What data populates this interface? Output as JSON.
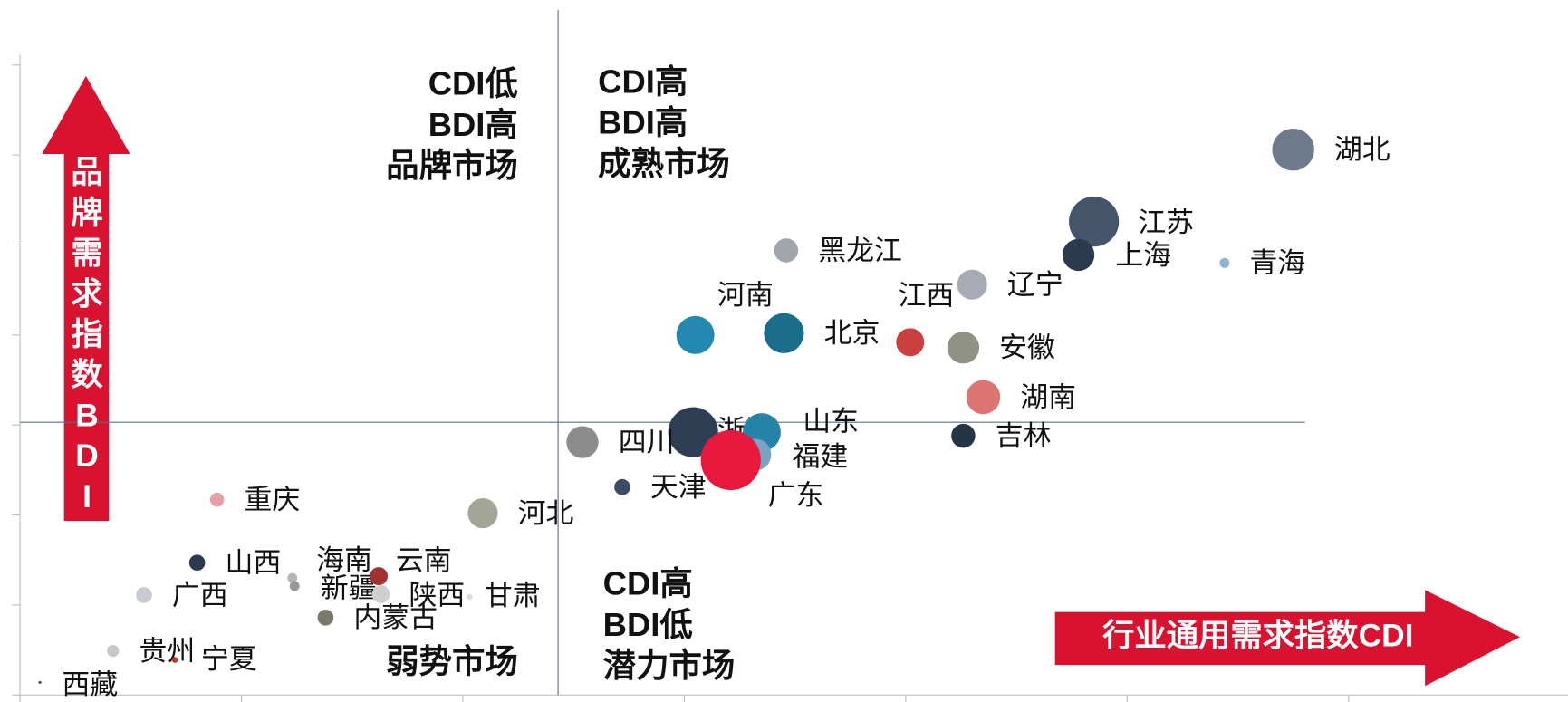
{
  "chart_data": {
    "type": "bubble",
    "y_axis_label": "品牌需求指数BDI",
    "x_axis_label": "行业通用需求指数CDI",
    "quadrants": [
      {
        "lines": [
          "CDI低",
          "BDI高",
          "品牌市场"
        ]
      },
      {
        "lines": [
          "CDI高",
          "BDI高",
          "成熟市场"
        ]
      },
      {
        "lines": [
          "弱势市场"
        ]
      },
      {
        "lines": [
          "CDI高",
          "BDI低",
          "潜力市场"
        ]
      }
    ],
    "xlim": [
      0,
      7
    ],
    "ylim": [
      0,
      7
    ],
    "xticks": [
      0,
      1,
      2,
      3,
      4,
      5,
      6,
      7
    ],
    "yticks": [
      0,
      1,
      2,
      3,
      4,
      5,
      6,
      7
    ],
    "xref": 2.43,
    "yref": 3.03,
    "labels": [
      "湖北",
      "江苏",
      "上海",
      "青海",
      "黑龙江",
      "辽宁",
      "河南",
      "北京",
      "江西",
      "安徽",
      "湖南",
      "浙江",
      "山东",
      "福建",
      "广东",
      "吉林",
      "四川",
      "天津",
      "河北",
      "重庆",
      "山西",
      "海南",
      "新疆",
      "云南",
      "陕西",
      "甘肃",
      "内蒙古",
      "广西",
      "贵州",
      "宁夏",
      "西藏"
    ],
    "x": [
      5.75,
      4.85,
      4.78,
      5.44,
      3.46,
      4.3,
      3.05,
      3.45,
      4.02,
      4.26,
      4.35,
      3.04,
      3.35,
      3.32,
      3.21,
      4.26,
      2.54,
      2.72,
      2.09,
      0.89,
      0.8,
      1.23,
      1.24,
      1.62,
      1.63,
      2.03,
      1.38,
      0.56,
      0.42,
      0.7,
      0.09
    ],
    "y": [
      6.06,
      5.26,
      4.89,
      4.8,
      4.94,
      4.56,
      4.0,
      4.02,
      3.92,
      3.86,
      3.31,
      2.92,
      2.92,
      2.67,
      2.61,
      2.88,
      2.81,
      2.31,
      2.02,
      2.17,
      1.47,
      1.3,
      1.21,
      1.32,
      1.12,
      1.09,
      0.86,
      1.11,
      0.49,
      0.39,
      0.14
    ],
    "sizes": [
      21,
      25,
      16,
      5,
      12,
      15,
      19,
      20,
      14,
      16,
      17,
      25,
      19,
      16,
      30,
      12,
      16,
      8,
      15,
      7,
      8,
      5,
      5,
      9,
      9,
      3,
      8,
      8,
      6,
      3,
      1.5
    ],
    "colors": [
      "#6d7b8d",
      "#44546a",
      "#2b3a4f",
      "#8fb4d4",
      "#a0a4ab",
      "#a6abb5",
      "#2389b0",
      "#1a6e8c",
      "#c9403f",
      "#8f9284",
      "#dc7474",
      "#2e3f55",
      "#2483a6",
      "#7aa4c4",
      "#e8193c",
      "#253548",
      "#8c8c8c",
      "#3a4c66",
      "#a3a596",
      "#e6a0a4",
      "#2b3a4f",
      "#b5b5b5",
      "#999999",
      "#a33030",
      "#cfcfcf",
      "#dddddd",
      "#7a7a6a",
      "#c8ccd2",
      "#c8c8c8",
      "#c0392b",
      "#555555"
    ]
  }
}
